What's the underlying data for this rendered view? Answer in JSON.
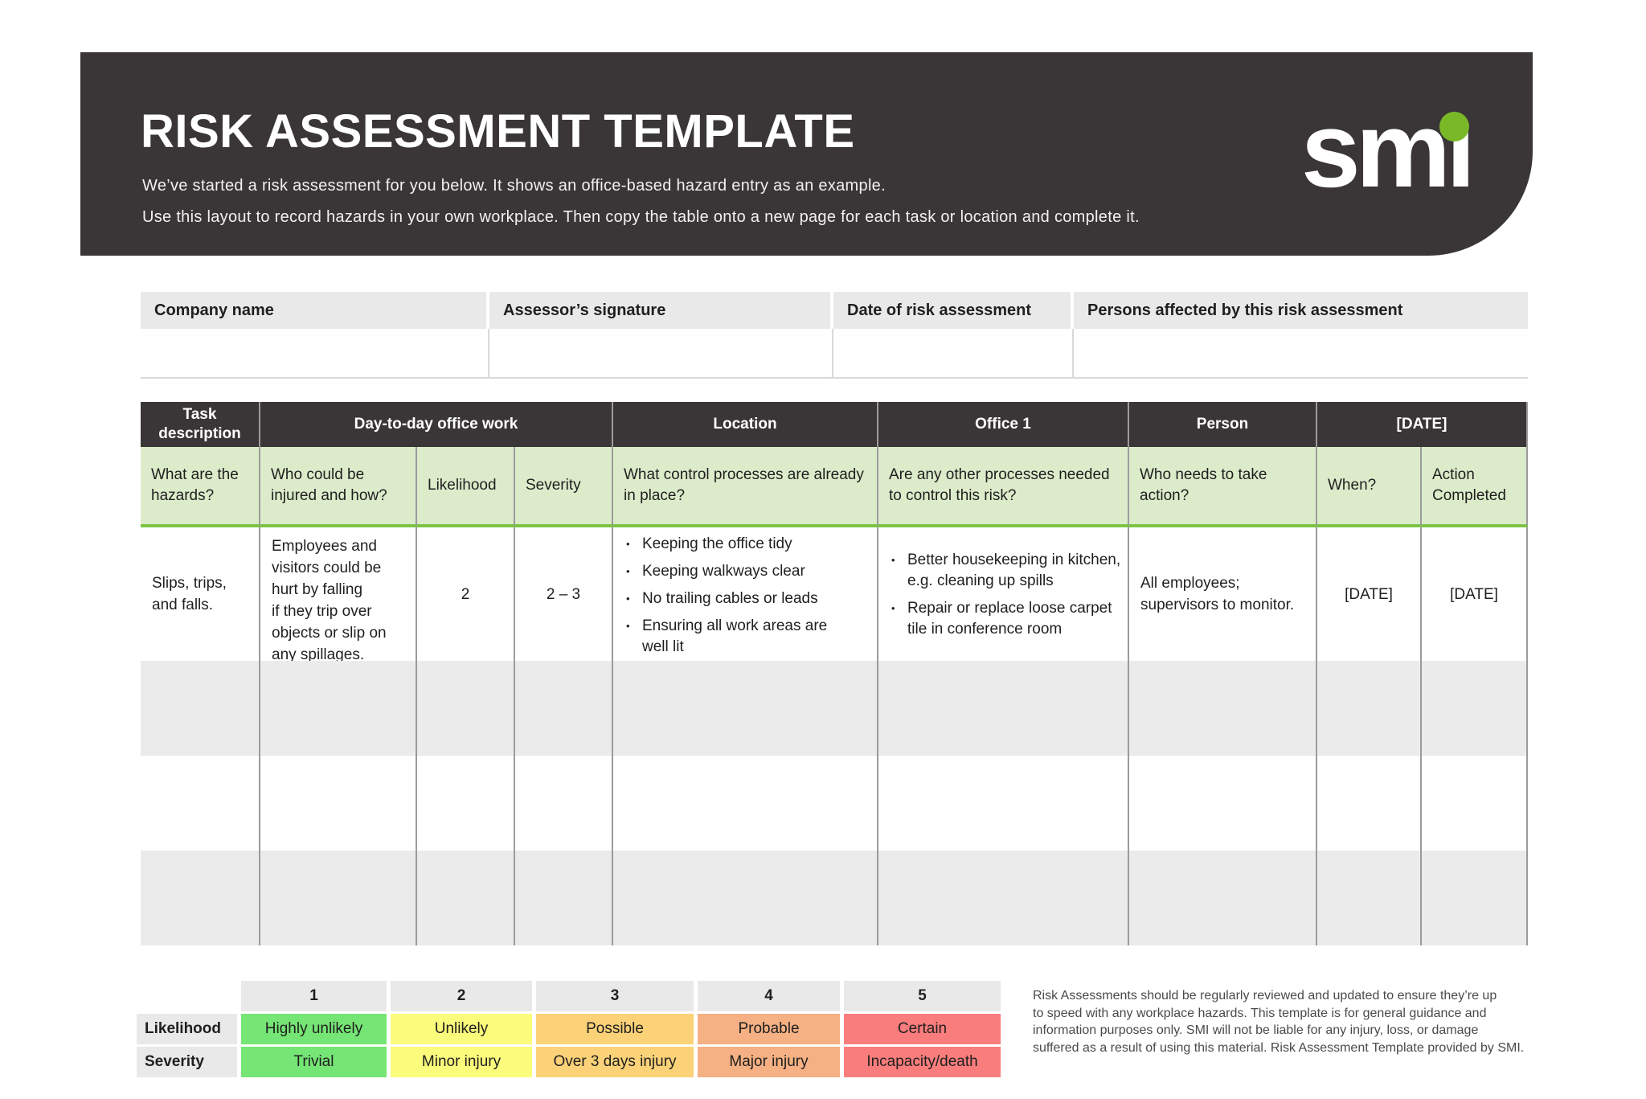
{
  "banner": {
    "title": "RISK ASSESSMENT TEMPLATE",
    "subtitle_line1": "We’ve started a risk assessment for you below. It shows an office-based hazard entry as an example.",
    "subtitle_line2": "Use this layout to record hazards in your own workplace. Then copy the table onto a new page for each task or location and complete it.",
    "logo": {
      "text": "smi",
      "render_base": "smı",
      "dot_color": "#79b928"
    },
    "background": "#3a3637"
  },
  "info_table": {
    "headers": [
      "Company name",
      "Assessor’s signature",
      "Date of risk assessment",
      "Persons affected by this risk assessment"
    ]
  },
  "risk_table": {
    "group_headers": {
      "task": "Task description",
      "activity": "Day-to-day office work",
      "location": "Location",
      "location_value": "Office 1",
      "person": "Person",
      "date": "[DATE]"
    },
    "column_headers": [
      "What are the hazards?",
      "Who could be injured and how?",
      "Likelihood",
      "Severity",
      "What control processes are already in place?",
      "Are any other processes needed to control this risk?",
      "Who needs to take action?",
      "When?",
      "Action Completed"
    ],
    "example_row": {
      "hazards": "Slips, trips,\nand falls.",
      "who_injured": "Employees and\nvisitors could be\nhurt by falling\nif they trip over\nobjects or slip on\nany spillages.",
      "likelihood": "2",
      "severity": "2 – 3",
      "bullet_char": "•",
      "controls_in_place": [
        "Keeping the office tidy",
        "Keeping walkways clear",
        "No trailing cables or leads",
        "Ensuring all work areas are\nwell lit"
      ],
      "other_processes": [
        "Better housekeeping in kitchen,\ne.g. cleaning up spills",
        "Repair or replace loose carpet\ntile in conference room"
      ],
      "who_action": "All employees;\nsupervisors to monitor.",
      "when": "[DATE]",
      "action_completed": "[DATE]"
    },
    "accent_green_border": "#7cc544",
    "subheader_background": "#dcebca"
  },
  "rating_table": {
    "scale_numbers": [
      "1",
      "2",
      "3",
      "4",
      "5"
    ],
    "likelihood_label": "Likelihood",
    "likelihood_values": [
      "Highly unlikely",
      "Unlikely",
      "Possible",
      "Probable",
      "Certain"
    ],
    "severity_label": "Severity",
    "severity_values": [
      "Trivial",
      "Minor injury",
      "Over 3 days injury",
      "Major injury",
      "Incapacity/death"
    ],
    "level_colors": [
      "#75e575",
      "#fbfb7c",
      "#fbd277",
      "#f5b083",
      "#f97d7c"
    ]
  },
  "disclaimer_lines": [
    "Risk Assessments should be regularly reviewed and updated to ensure they’re up",
    "to speed with any workplace hazards. This template is for general guidance and",
    "information purposes only. SMI will not be liable for any injury, loss, or damage",
    "suffered as a result of using this material. Risk Assessment Template provided by SMI."
  ]
}
